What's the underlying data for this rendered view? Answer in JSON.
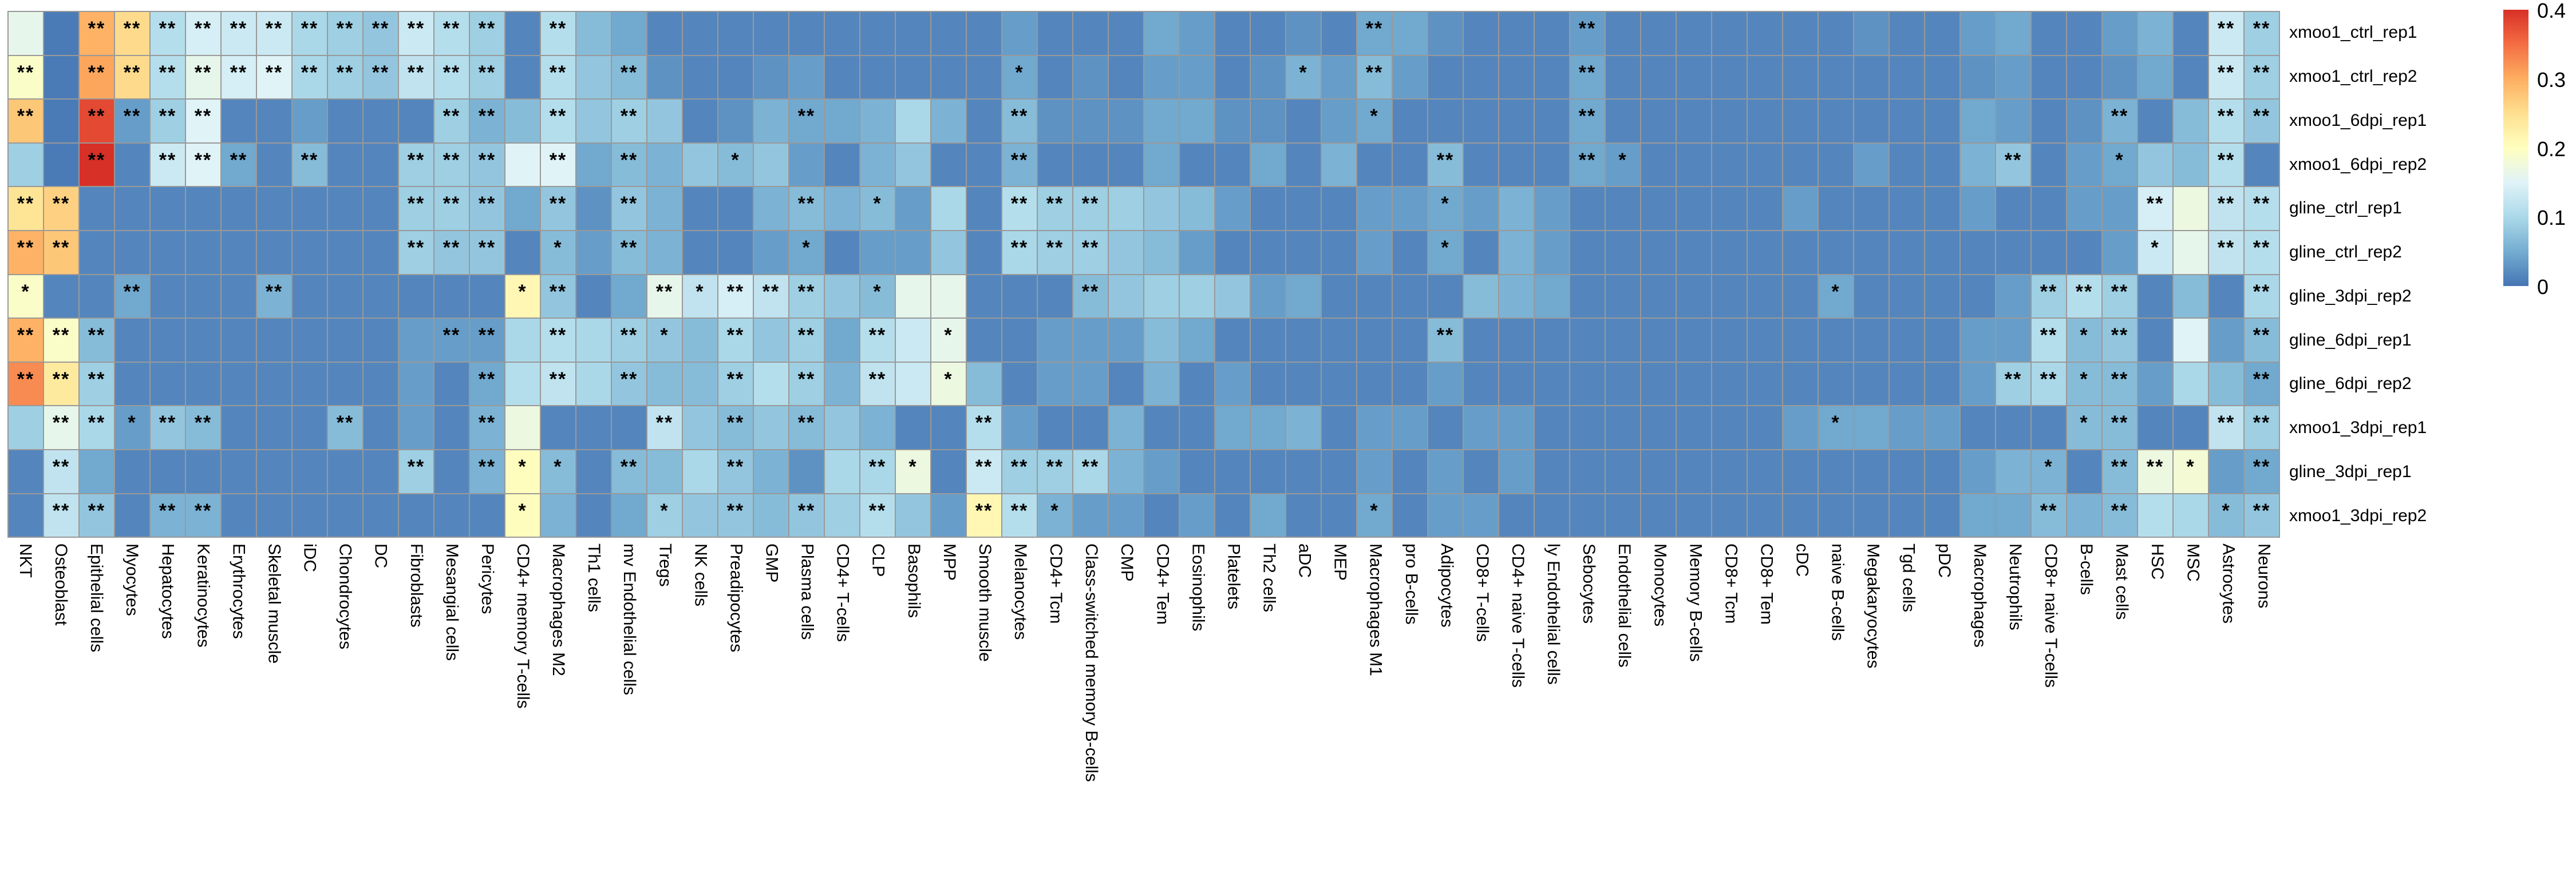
{
  "chart_data": {
    "type": "heatmap",
    "title": "",
    "xlabel": "",
    "ylabel": "",
    "vmin": 0,
    "vmax": 0.4,
    "grid_color": "#999999",
    "colormap_stops_low_to_high": [
      "#4575b4",
      "#74add1",
      "#abd9e9",
      "#e0f3f8",
      "#ffffbf",
      "#fee090",
      "#fdae61",
      "#f46d43",
      "#d73027"
    ],
    "colorbar": {
      "ticks": [
        "0.4",
        "0.3",
        "0.2",
        "0.1",
        "0"
      ],
      "orientation": "vertical",
      "position": "right"
    },
    "significance_legend": {
      "one_star": "*",
      "two_star": "**"
    },
    "columns": [
      "NKT",
      "Osteoblast",
      "Epithelial cells",
      "Myocytes",
      "Hepatocytes",
      "Keratinocytes",
      "Erythrocytes",
      "Skeletal muscle",
      "iDC",
      "Chondrocytes",
      "DC",
      "Fibroblasts",
      "Mesangial cells",
      "Pericytes",
      "CD4+ memory T-cells",
      "Macrophages M2",
      "Th1 cells",
      "mv Endothelial cells",
      "Tregs",
      "NK cells",
      "Preadipocytes",
      "GMP",
      "Plasma cells",
      "CD4+ T-cells",
      "CLP",
      "Basophils",
      "MPP",
      "Smooth muscle",
      "Melanocytes",
      "CD4+ Tcm",
      "Class-switched memory B-cells",
      "CMP",
      "CD4+ Tem",
      "Eosinophils",
      "Platelets",
      "Th2 cells",
      "aDC",
      "MEP",
      "Macrophages M1",
      "pro B-cells",
      "Adipocytes",
      "CD8+ T-cells",
      "CD4+ naive T-cells",
      "ly Endothelial cells",
      "Sebocytes",
      "Endothelial cells",
      "Monocytes",
      "Memory B-cells",
      "CD8+ Tcm",
      "CD8+ Tem",
      "cDC",
      "naive B-cells",
      "Megakaryocytes",
      "Tgd cells",
      "pDC",
      "Macrophages",
      "Neutrophils",
      "CD8+ naive T-cells",
      "B-cells",
      "Mast cells",
      "HSC",
      "MSC",
      "Astrocytes",
      "Neurons"
    ],
    "rows": [
      {
        "label": "xmoo1_ctrl_rep1",
        "values": [
          0.17,
          0.02,
          0.3,
          0.26,
          0.12,
          0.15,
          0.14,
          0.14,
          0.11,
          0.1,
          0.09,
          0.14,
          0.12,
          0.1,
          0.03,
          0.12,
          0.08,
          0.06,
          0.03,
          0.03,
          0.03,
          0.03,
          0.03,
          0.03,
          0.03,
          0.03,
          0.03,
          0.03,
          0.05,
          0.03,
          0.03,
          0.03,
          0.06,
          0.05,
          0.03,
          0.03,
          0.04,
          0.03,
          0.06,
          0.06,
          0.04,
          0.03,
          0.03,
          0.03,
          0.05,
          0.03,
          0.03,
          0.03,
          0.03,
          0.03,
          0.03,
          0.03,
          0.04,
          0.03,
          0.03,
          0.05,
          0.06,
          0.03,
          0.03,
          0.05,
          0.07,
          0.03,
          0.14,
          0.1
        ],
        "star2": [
          2,
          3,
          4,
          5,
          6,
          7,
          8,
          9,
          10,
          11,
          12,
          13,
          15,
          38,
          44,
          62,
          63
        ],
        "star1": []
      },
      {
        "label": "xmoo1_ctrl_rep2",
        "values": [
          0.2,
          0.02,
          0.31,
          0.26,
          0.12,
          0.17,
          0.15,
          0.16,
          0.11,
          0.1,
          0.09,
          0.13,
          0.12,
          0.1,
          0.03,
          0.12,
          0.09,
          0.08,
          0.04,
          0.03,
          0.03,
          0.04,
          0.05,
          0.03,
          0.03,
          0.03,
          0.03,
          0.03,
          0.06,
          0.03,
          0.04,
          0.03,
          0.05,
          0.05,
          0.03,
          0.04,
          0.07,
          0.05,
          0.08,
          0.05,
          0.03,
          0.03,
          0.03,
          0.03,
          0.06,
          0.03,
          0.03,
          0.03,
          0.03,
          0.03,
          0.03,
          0.03,
          0.03,
          0.03,
          0.03,
          0.04,
          0.05,
          0.03,
          0.03,
          0.04,
          0.06,
          0.03,
          0.14,
          0.1
        ],
        "star2": [
          0,
          2,
          3,
          4,
          5,
          6,
          7,
          8,
          9,
          10,
          11,
          12,
          13,
          15,
          17,
          38,
          44,
          62,
          63
        ],
        "star1": [
          28,
          36
        ]
      },
      {
        "label": "xmoo1_6dpi_rep1",
        "values": [
          0.28,
          0.02,
          0.38,
          0.05,
          0.1,
          0.16,
          0.03,
          0.03,
          0.05,
          0.03,
          0.03,
          0.03,
          0.1,
          0.07,
          0.08,
          0.12,
          0.09,
          0.1,
          0.09,
          0.03,
          0.04,
          0.07,
          0.06,
          0.06,
          0.07,
          0.11,
          0.07,
          0.03,
          0.08,
          0.04,
          0.04,
          0.04,
          0.06,
          0.06,
          0.04,
          0.04,
          0.03,
          0.05,
          0.06,
          0.03,
          0.03,
          0.03,
          0.03,
          0.03,
          0.06,
          0.03,
          0.03,
          0.03,
          0.03,
          0.03,
          0.03,
          0.03,
          0.03,
          0.03,
          0.03,
          0.06,
          0.05,
          0.03,
          0.04,
          0.07,
          0.03,
          0.08,
          0.12,
          0.09
        ],
        "star2": [
          0,
          2,
          3,
          4,
          5,
          12,
          13,
          15,
          17,
          22,
          28,
          44,
          59,
          62,
          63
        ],
        "star1": [
          38
        ]
      },
      {
        "label": "xmoo1_6dpi_rep2",
        "values": [
          0.1,
          0.02,
          0.4,
          0.03,
          0.14,
          0.16,
          0.06,
          0.03,
          0.08,
          0.03,
          0.03,
          0.1,
          0.1,
          0.09,
          0.16,
          0.16,
          0.06,
          0.08,
          0.07,
          0.09,
          0.08,
          0.09,
          0.05,
          0.03,
          0.07,
          0.09,
          0.03,
          0.03,
          0.07,
          0.03,
          0.03,
          0.03,
          0.06,
          0.03,
          0.03,
          0.06,
          0.03,
          0.07,
          0.03,
          0.03,
          0.08,
          0.03,
          0.03,
          0.03,
          0.06,
          0.05,
          0.03,
          0.03,
          0.03,
          0.03,
          0.03,
          0.03,
          0.05,
          0.03,
          0.03,
          0.07,
          0.09,
          0.03,
          0.05,
          0.06,
          0.09,
          0.08,
          0.12,
          0.03
        ],
        "star2": [
          2,
          4,
          5,
          6,
          8,
          11,
          12,
          13,
          15,
          17,
          28,
          40,
          44,
          56,
          62
        ],
        "star1": [
          20,
          45,
          59
        ]
      },
      {
        "label": "gline_ctrl_rep1",
        "values": [
          0.25,
          0.27,
          0.03,
          0.03,
          0.03,
          0.03,
          0.03,
          0.03,
          0.03,
          0.03,
          0.03,
          0.1,
          0.1,
          0.09,
          0.06,
          0.09,
          0.04,
          0.09,
          0.07,
          0.03,
          0.03,
          0.07,
          0.08,
          0.07,
          0.08,
          0.05,
          0.11,
          0.03,
          0.12,
          0.1,
          0.1,
          0.1,
          0.09,
          0.08,
          0.05,
          0.03,
          0.03,
          0.03,
          0.05,
          0.05,
          0.06,
          0.05,
          0.07,
          0.05,
          0.03,
          0.03,
          0.03,
          0.03,
          0.03,
          0.03,
          0.05,
          0.03,
          0.03,
          0.03,
          0.03,
          0.05,
          0.03,
          0.03,
          0.05,
          0.05,
          0.15,
          0.18,
          0.13,
          0.12
        ],
        "star2": [
          0,
          1,
          11,
          12,
          13,
          15,
          17,
          22,
          28,
          29,
          30,
          60,
          62,
          63
        ],
        "star1": [
          24,
          40
        ]
      },
      {
        "label": "gline_ctrl_rep2",
        "values": [
          0.3,
          0.28,
          0.03,
          0.03,
          0.03,
          0.03,
          0.03,
          0.03,
          0.03,
          0.03,
          0.03,
          0.1,
          0.09,
          0.09,
          0.03,
          0.08,
          0.05,
          0.08,
          0.07,
          0.03,
          0.03,
          0.05,
          0.06,
          0.03,
          0.05,
          0.05,
          0.09,
          0.03,
          0.11,
          0.1,
          0.1,
          0.09,
          0.08,
          0.05,
          0.03,
          0.03,
          0.03,
          0.03,
          0.05,
          0.03,
          0.06,
          0.03,
          0.07,
          0.05,
          0.03,
          0.03,
          0.03,
          0.03,
          0.03,
          0.03,
          0.03,
          0.03,
          0.03,
          0.03,
          0.03,
          0.03,
          0.03,
          0.03,
          0.03,
          0.05,
          0.14,
          0.17,
          0.13,
          0.12
        ],
        "star2": [
          0,
          1,
          11,
          12,
          13,
          17,
          28,
          29,
          30,
          62,
          63
        ],
        "star1": [
          15,
          22,
          40,
          60
        ]
      },
      {
        "label": "gline_3dpi_rep2",
        "values": [
          0.2,
          0.03,
          0.03,
          0.06,
          0.03,
          0.03,
          0.03,
          0.07,
          0.03,
          0.03,
          0.03,
          0.03,
          0.03,
          0.03,
          0.22,
          0.09,
          0.03,
          0.06,
          0.17,
          0.13,
          0.15,
          0.13,
          0.1,
          0.09,
          0.08,
          0.17,
          0.17,
          0.03,
          0.03,
          0.03,
          0.08,
          0.09,
          0.1,
          0.1,
          0.09,
          0.05,
          0.06,
          0.03,
          0.03,
          0.03,
          0.03,
          0.08,
          0.07,
          0.06,
          0.03,
          0.03,
          0.03,
          0.03,
          0.03,
          0.03,
          0.03,
          0.06,
          0.03,
          0.03,
          0.03,
          0.03,
          0.05,
          0.1,
          0.12,
          0.1,
          0.03,
          0.08,
          0.03,
          0.11
        ],
        "star2": [
          3,
          7,
          15,
          18,
          20,
          21,
          22,
          30,
          57,
          58,
          59,
          63
        ],
        "star1": [
          0,
          14,
          19,
          24,
          51
        ]
      },
      {
        "label": "gline_6dpi_rep1",
        "values": [
          0.3,
          0.2,
          0.08,
          0.03,
          0.03,
          0.03,
          0.03,
          0.03,
          0.03,
          0.03,
          0.03,
          0.05,
          0.05,
          0.05,
          0.11,
          0.12,
          0.11,
          0.1,
          0.09,
          0.08,
          0.11,
          0.09,
          0.1,
          0.06,
          0.12,
          0.14,
          0.17,
          0.03,
          0.03,
          0.05,
          0.05,
          0.05,
          0.08,
          0.06,
          0.03,
          0.03,
          0.03,
          0.03,
          0.03,
          0.03,
          0.08,
          0.03,
          0.03,
          0.03,
          0.03,
          0.03,
          0.03,
          0.03,
          0.03,
          0.03,
          0.03,
          0.03,
          0.03,
          0.03,
          0.03,
          0.05,
          0.05,
          0.12,
          0.08,
          0.09,
          0.03,
          0.16,
          0.05,
          0.08
        ],
        "star2": [
          0,
          1,
          2,
          12,
          13,
          15,
          17,
          20,
          22,
          24,
          40,
          57,
          59,
          63
        ],
        "star1": [
          18,
          26,
          58
        ]
      },
      {
        "label": "gline_6dpi_rep2",
        "values": [
          0.33,
          0.24,
          0.1,
          0.03,
          0.03,
          0.03,
          0.03,
          0.03,
          0.03,
          0.03,
          0.03,
          0.05,
          0.03,
          0.06,
          0.12,
          0.13,
          0.11,
          0.09,
          0.08,
          0.08,
          0.1,
          0.12,
          0.1,
          0.07,
          0.13,
          0.14,
          0.18,
          0.08,
          0.03,
          0.05,
          0.05,
          0.03,
          0.07,
          0.03,
          0.05,
          0.03,
          0.03,
          0.03,
          0.03,
          0.03,
          0.05,
          0.03,
          0.03,
          0.03,
          0.03,
          0.03,
          0.03,
          0.03,
          0.03,
          0.03,
          0.03,
          0.03,
          0.03,
          0.03,
          0.03,
          0.05,
          0.1,
          0.11,
          0.08,
          0.08,
          0.05,
          0.11,
          0.08,
          0.06
        ],
        "star2": [
          0,
          1,
          2,
          13,
          15,
          17,
          20,
          22,
          24,
          56,
          57,
          59,
          63
        ],
        "star1": [
          26,
          58
        ]
      },
      {
        "label": "xmoo1_3dpi_rep1",
        "values": [
          0.1,
          0.17,
          0.11,
          0.05,
          0.09,
          0.08,
          0.03,
          0.03,
          0.03,
          0.08,
          0.03,
          0.05,
          0.03,
          0.07,
          0.18,
          0.03,
          0.03,
          0.03,
          0.13,
          0.09,
          0.08,
          0.09,
          0.08,
          0.09,
          0.07,
          0.03,
          0.03,
          0.12,
          0.05,
          0.03,
          0.03,
          0.07,
          0.03,
          0.03,
          0.06,
          0.06,
          0.07,
          0.03,
          0.05,
          0.05,
          0.03,
          0.05,
          0.05,
          0.03,
          0.03,
          0.03,
          0.03,
          0.03,
          0.03,
          0.03,
          0.05,
          0.06,
          0.06,
          0.05,
          0.05,
          0.03,
          0.03,
          0.03,
          0.08,
          0.08,
          0.03,
          0.03,
          0.13,
          0.1
        ],
        "star2": [
          1,
          2,
          4,
          5,
          9,
          13,
          18,
          20,
          22,
          27,
          59,
          62,
          63
        ],
        "star1": [
          3,
          51,
          58
        ]
      },
      {
        "label": "gline_3dpi_rep1",
        "values": [
          0.03,
          0.13,
          0.06,
          0.03,
          0.03,
          0.03,
          0.03,
          0.03,
          0.03,
          0.03,
          0.03,
          0.1,
          0.03,
          0.07,
          0.21,
          0.08,
          0.03,
          0.08,
          0.08,
          0.11,
          0.09,
          0.07,
          0.04,
          0.11,
          0.11,
          0.18,
          0.03,
          0.14,
          0.1,
          0.1,
          0.11,
          0.07,
          0.05,
          0.03,
          0.03,
          0.03,
          0.03,
          0.03,
          0.05,
          0.03,
          0.05,
          0.03,
          0.05,
          0.03,
          0.03,
          0.03,
          0.03,
          0.03,
          0.03,
          0.03,
          0.03,
          0.03,
          0.03,
          0.03,
          0.03,
          0.05,
          0.07,
          0.07,
          0.03,
          0.08,
          0.18,
          0.19,
          0.05,
          0.06
        ],
        "star2": [
          1,
          11,
          13,
          17,
          20,
          24,
          27,
          28,
          29,
          30,
          59,
          60,
          63
        ],
        "star1": [
          14,
          15,
          25,
          57,
          61
        ]
      },
      {
        "label": "xmoo1_3dpi_rep2",
        "values": [
          0.03,
          0.13,
          0.09,
          0.03,
          0.07,
          0.07,
          0.03,
          0.03,
          0.03,
          0.03,
          0.03,
          0.03,
          0.03,
          0.03,
          0.21,
          0.07,
          0.03,
          0.06,
          0.1,
          0.09,
          0.09,
          0.08,
          0.09,
          0.1,
          0.12,
          0.09,
          0.05,
          0.22,
          0.12,
          0.07,
          0.05,
          0.05,
          0.03,
          0.05,
          0.03,
          0.06,
          0.03,
          0.03,
          0.06,
          0.03,
          0.05,
          0.05,
          0.03,
          0.03,
          0.03,
          0.03,
          0.03,
          0.03,
          0.03,
          0.03,
          0.03,
          0.03,
          0.03,
          0.03,
          0.03,
          0.06,
          0.06,
          0.08,
          0.07,
          0.08,
          0.12,
          0.11,
          0.08,
          0.09
        ],
        "star2": [
          1,
          2,
          4,
          5,
          20,
          22,
          24,
          27,
          28,
          57,
          59,
          63
        ],
        "star1": [
          14,
          18,
          29,
          38,
          62
        ]
      }
    ]
  }
}
